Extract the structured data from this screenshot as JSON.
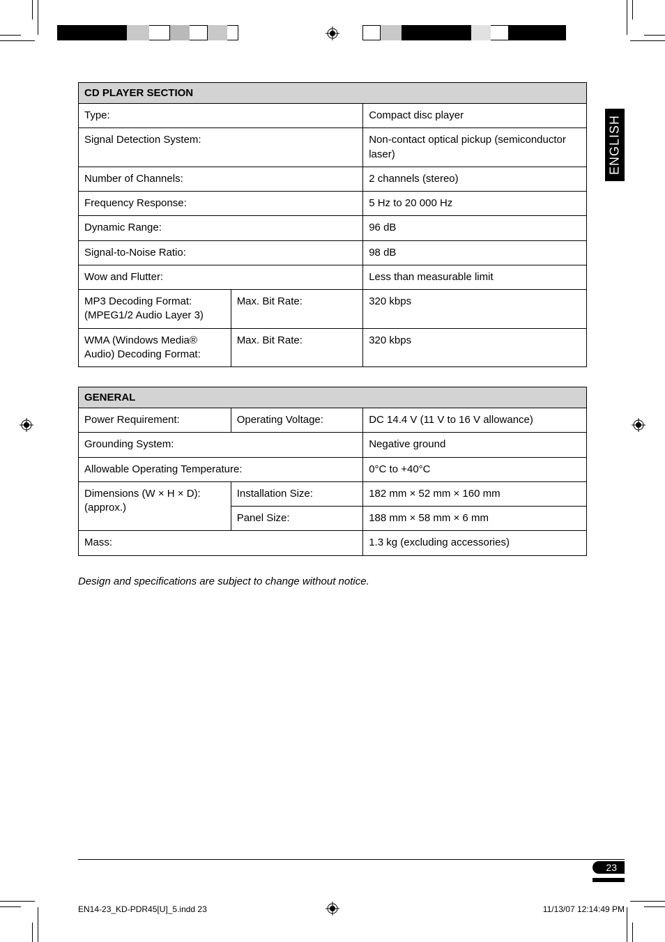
{
  "langTab": "ENGLISH",
  "tables": {
    "cd": {
      "header": "CD PLAYER SECTION",
      "rows": [
        {
          "label": "Type:",
          "sub": "",
          "value": "Compact disc player"
        },
        {
          "label": "Signal Detection System:",
          "sub": "",
          "value": "Non-contact optical pickup (semiconductor laser)"
        },
        {
          "label": "Number of Channels:",
          "sub": "",
          "value": "2 channels (stereo)"
        },
        {
          "label": "Frequency Response:",
          "sub": "",
          "value": "5 Hz to 20 000 Hz"
        },
        {
          "label": "Dynamic Range:",
          "sub": "",
          "value": "96 dB"
        },
        {
          "label": "Signal-to-Noise Ratio:",
          "sub": "",
          "value": "98 dB"
        },
        {
          "label": "Wow and Flutter:",
          "sub": "",
          "value": "Less than measurable limit"
        },
        {
          "label": "MP3 Decoding Format: (MPEG1/2 Audio Layer 3)",
          "sub": "Max. Bit Rate:",
          "value": "320 kbps"
        },
        {
          "label": "WMA (Windows Media® Audio) Decoding Format:",
          "sub": "Max. Bit Rate:",
          "value": "320 kbps"
        }
      ]
    },
    "general": {
      "header": "GENERAL",
      "rows": [
        {
          "label": "Power Requirement:",
          "sub": "Operating Voltage:",
          "value": "DC 14.4 V (11 V to 16 V allowance)"
        },
        {
          "label": "Grounding System:",
          "sub": "",
          "value": "Negative ground"
        },
        {
          "label": "Allowable Operating Temperature:",
          "sub": "",
          "value": "0°C to +40°C"
        },
        {
          "label": "Dimensions (W × H × D): (approx.)",
          "sub": "Installation Size:",
          "value": "182 mm × 52 mm × 160 mm",
          "rowspan": true
        },
        {
          "label": "",
          "sub": "Panel Size:",
          "value": "188 mm × 58 mm × 6 mm"
        },
        {
          "label": "Mass:",
          "sub": "",
          "value": "1.3 kg (excluding accessories)"
        }
      ]
    }
  },
  "note": "Design and specifications are subject to change without notice.",
  "pageNumber": "23",
  "footer": {
    "file": "EN14-23_KD-PDR45[U]_5.indd   23",
    "timestamp": "11/13/07   12:14:49 PM"
  },
  "colors": {
    "headerBg": "#d3d3d3",
    "black": "#000000",
    "white": "#ffffff"
  },
  "colorbars": {
    "left": [
      "#000000",
      "#000000",
      "#c8c8c8",
      "#ffffff",
      "#b9b9b9",
      "#ffffff",
      "#c8c8c8",
      "#ffffff"
    ],
    "right": [
      "#ffffff",
      "#c8c8c8",
      "#000000",
      "#000000",
      "#e1e1e1",
      "#ffffff",
      "#000000",
      "#000000"
    ],
    "leftWidths": [
      50,
      50,
      32,
      30,
      28,
      26,
      28,
      16
    ],
    "rightWidths": [
      26,
      30,
      50,
      50,
      28,
      26,
      50,
      32
    ]
  }
}
